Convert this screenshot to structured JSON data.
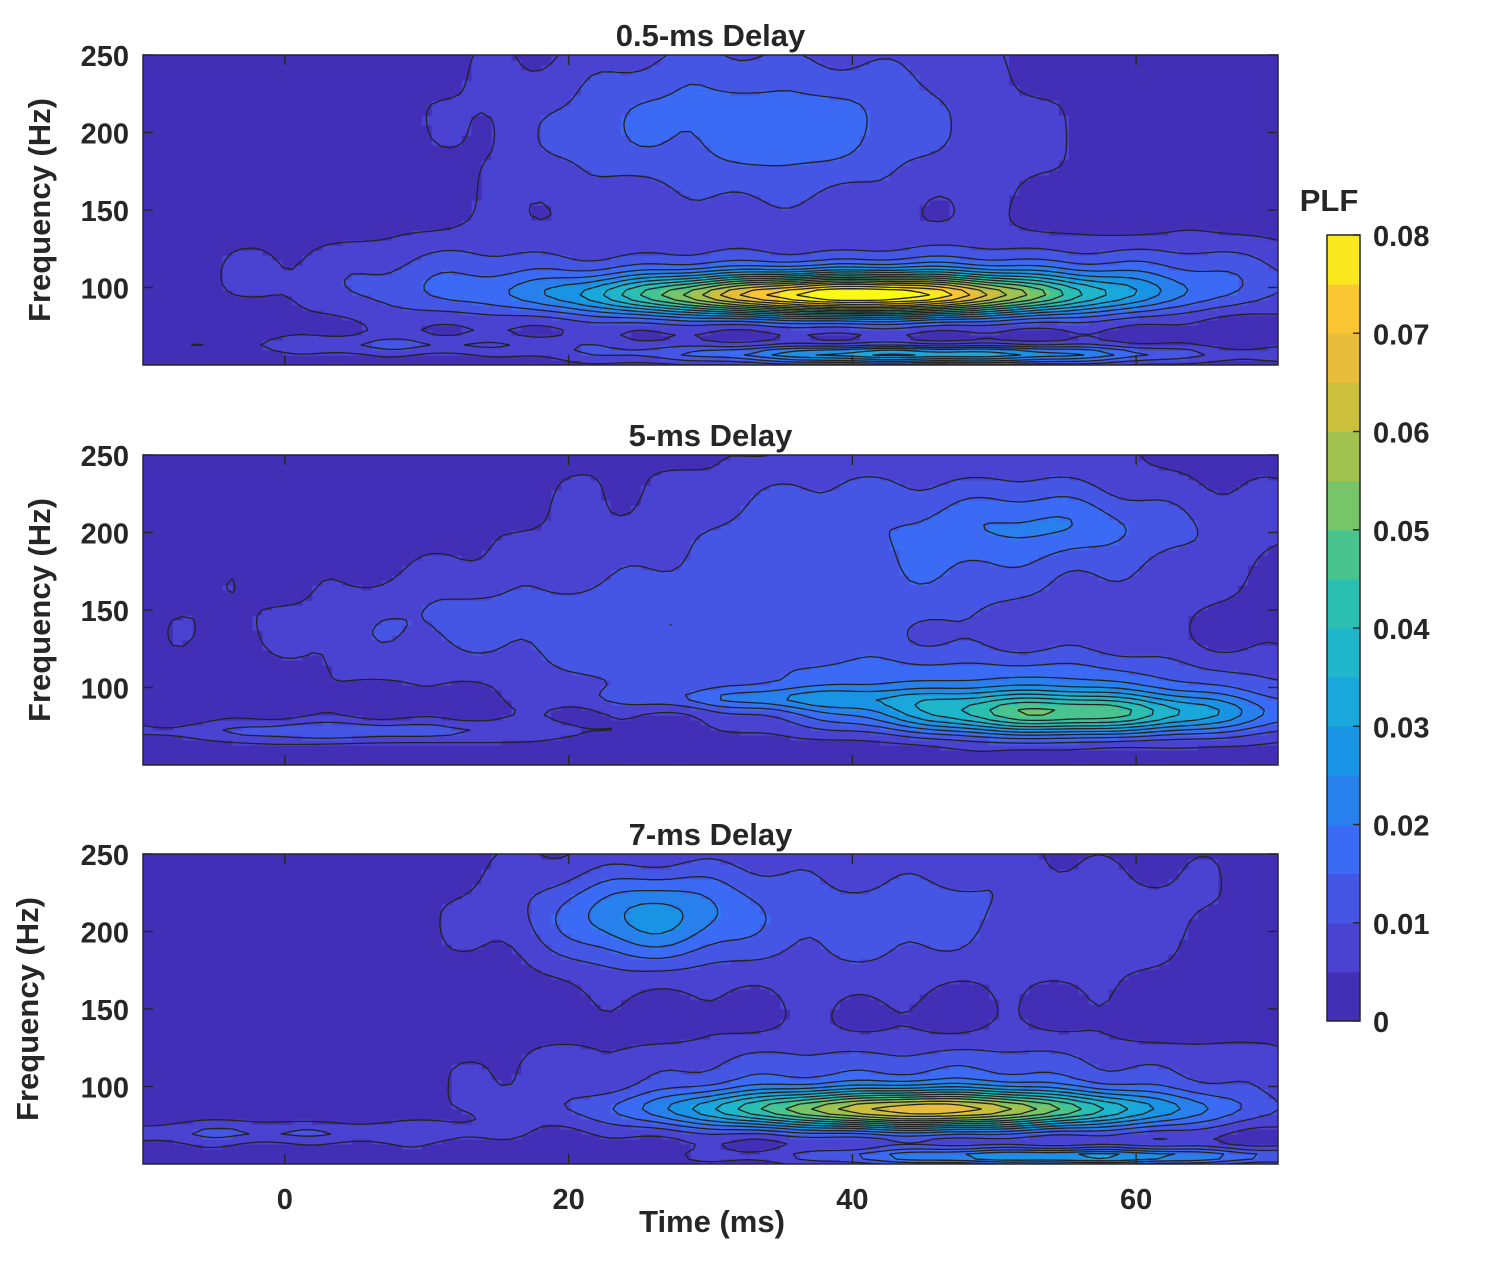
{
  "chart_data": [
    {
      "type": "heatmap",
      "subtype": "contourf",
      "title": "0.5-ms Delay",
      "xlabel": "",
      "ylabel": "Frequency (Hz)",
      "xlim": [
        -10,
        70
      ],
      "ylim": [
        50,
        250
      ],
      "xticks": [
        0,
        20,
        40,
        60
      ],
      "yticks": [
        100,
        150,
        200,
        250
      ],
      "show_xticklabels": false,
      "blobs": [
        {
          "kind": "hf",
          "t": 33,
          "f": 205,
          "st": 12,
          "sf": 40,
          "a": 0.016
        },
        {
          "kind": "hf",
          "t": 55,
          "f": 110,
          "st": 20,
          "sf": 15,
          "a": 0.012
        },
        {
          "kind": "hf",
          "t": 12,
          "f": 105,
          "st": 10,
          "sf": 20,
          "a": 0.009
        },
        {
          "kind": "main",
          "t": 40,
          "f": 95,
          "st": 12,
          "sf": 9.5,
          "a": 0.078
        },
        {
          "kind": "low",
          "t": 45,
          "f": 57,
          "st": 12,
          "sf": 4,
          "a": 0.034
        },
        {
          "kind": "low",
          "t": 10,
          "f": 63,
          "st": 10,
          "sf": 4,
          "a": 0.008
        }
      ]
    },
    {
      "type": "heatmap",
      "subtype": "contourf",
      "title": "5-ms Delay",
      "xlabel": "",
      "ylabel": "Frequency (Hz)",
      "xlim": [
        -10,
        70
      ],
      "ylim": [
        50,
        250
      ],
      "xticks": [
        0,
        20,
        40,
        60
      ],
      "yticks": [
        100,
        150,
        200,
        250
      ],
      "show_xticklabels": false,
      "blobs": [
        {
          "kind": "hf",
          "t": 45,
          "f": 195,
          "st": 15,
          "sf": 40,
          "a": 0.013
        },
        {
          "kind": "hf",
          "t": 55,
          "f": 205,
          "st": 6,
          "sf": 14,
          "a": 0.008
        },
        {
          "kind": "hf",
          "t": 20,
          "f": 140,
          "st": 15,
          "sf": 25,
          "a": 0.01
        },
        {
          "kind": "hf",
          "t": 50,
          "f": 105,
          "st": 16,
          "sf": 14,
          "a": 0.014
        },
        {
          "kind": "main",
          "t": 55,
          "f": 83,
          "st": 10,
          "sf": 10,
          "a": 0.044
        },
        {
          "kind": "low",
          "t": 35,
          "f": 93,
          "st": 8,
          "sf": 5,
          "a": 0.012
        },
        {
          "kind": "low",
          "t": 5,
          "f": 72,
          "st": 10,
          "sf": 5,
          "a": 0.012
        }
      ]
    },
    {
      "type": "heatmap",
      "subtype": "contourf",
      "title": "7-ms Delay",
      "xlabel": "Time (ms)",
      "ylabel": "Frequency (Hz)",
      "xlim": [
        -10,
        70
      ],
      "ylim": [
        50,
        250
      ],
      "xticks": [
        0,
        20,
        40,
        60
      ],
      "yticks": [
        100,
        150,
        200,
        250
      ],
      "show_xticklabels": true,
      "blobs": [
        {
          "kind": "hf",
          "t": 25,
          "f": 210,
          "st": 5,
          "sf": 20,
          "a": 0.018
        },
        {
          "kind": "hf",
          "t": 40,
          "f": 210,
          "st": 16,
          "sf": 35,
          "a": 0.01
        },
        {
          "kind": "hf",
          "t": 45,
          "f": 108,
          "st": 18,
          "sf": 16,
          "a": 0.012
        },
        {
          "kind": "main",
          "t": 45,
          "f": 85,
          "st": 12,
          "sf": 9,
          "a": 0.062
        },
        {
          "kind": "low",
          "t": 55,
          "f": 55,
          "st": 12,
          "sf": 4,
          "a": 0.03
        },
        {
          "kind": "low",
          "t": 0,
          "f": 70,
          "st": 10,
          "sf": 5,
          "a": 0.009
        }
      ]
    }
  ],
  "colorbar": {
    "label": "PLF",
    "ticks": [
      "0",
      "0.01",
      "0.02",
      "0.03",
      "0.04",
      "0.05",
      "0.06",
      "0.07",
      "0.08"
    ],
    "range": [
      0,
      0.08
    ],
    "levels": [
      0,
      0.005,
      0.01,
      0.015,
      0.02,
      0.025,
      0.03,
      0.035,
      0.04,
      0.045,
      0.05,
      0.055,
      0.06,
      0.065,
      0.07,
      0.075,
      0.08
    ],
    "colormap": "parula",
    "stops": [
      "#3e26a8",
      "#4c47d8",
      "#3a6cf6",
      "#1991e5",
      "#1bb2d6",
      "#2ec3a5",
      "#7fc562",
      "#c9bf3c",
      "#fbbc3a",
      "#f9fb15"
    ]
  }
}
